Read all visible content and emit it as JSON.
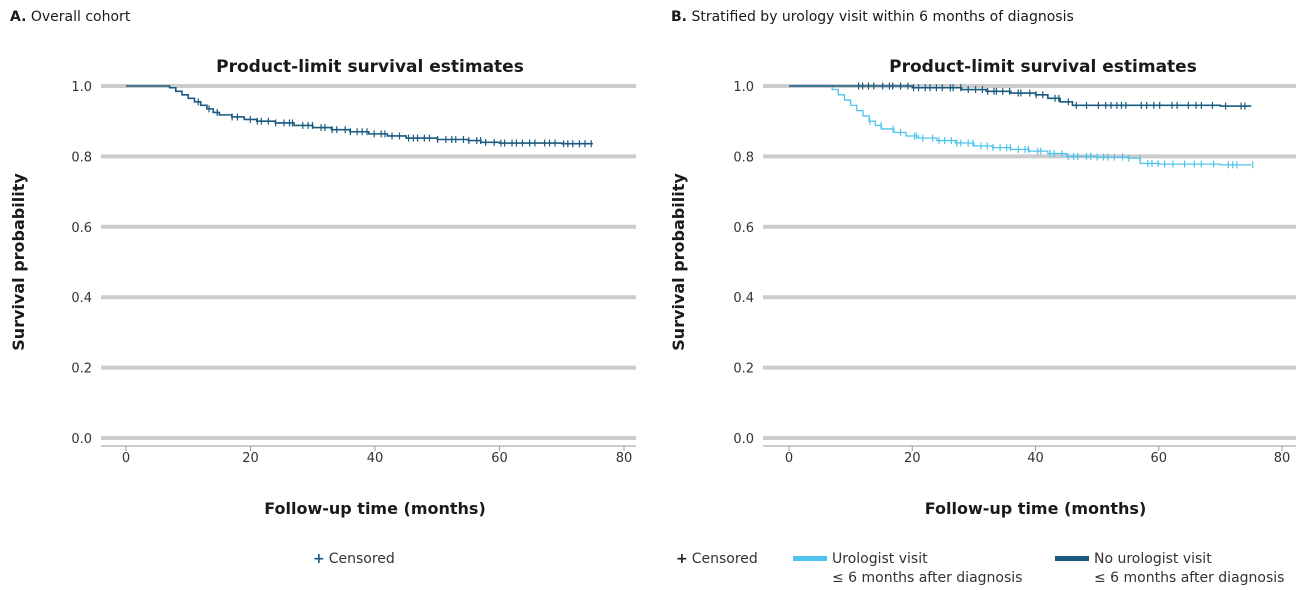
{
  "panels": {
    "a": {
      "letter": "A.",
      "heading": "Overall cohort"
    },
    "b": {
      "letter": "B.",
      "heading": "Stratified by urology visit within 6 months of diagnosis"
    }
  },
  "legend": {
    "censored_symbol": "+",
    "censored": "Censored",
    "urologist_line1": "Urologist visit",
    "urologist_line2": "≤ 6 months after diagnosis",
    "no_urologist_line1": "No urologist visit",
    "no_urologist_line2": "≤ 6 months after diagnosis"
  },
  "colors": {
    "dark": "#1a5a80",
    "light": "#4ec4ec",
    "grid": "#cccccc"
  },
  "chart_data": [
    {
      "type": "line",
      "title": "Product-limit survival estimates",
      "xlabel": "Follow-up time (months)",
      "ylabel": "Survival probability",
      "xlim": [
        0,
        80
      ],
      "ylim": [
        0,
        1
      ],
      "xticks": [
        0,
        20,
        40,
        60,
        80
      ],
      "yticks": [
        "0.0",
        "0.2",
        "0.4",
        "0.6",
        "0.8",
        "1.0"
      ],
      "grid": "horizontal",
      "series": [
        {
          "color": "#1a5a80",
          "x": [
            0,
            6,
            7,
            8,
            9,
            10,
            11,
            12,
            13,
            14,
            15,
            17,
            19,
            21,
            24,
            27,
            30,
            33,
            36,
            39,
            42,
            45,
            50,
            55,
            57,
            60,
            65,
            70,
            75
          ],
          "y": [
            1.0,
            1.0,
            0.995,
            0.985,
            0.975,
            0.965,
            0.955,
            0.945,
            0.935,
            0.925,
            0.918,
            0.912,
            0.905,
            0.9,
            0.895,
            0.888,
            0.882,
            0.876,
            0.87,
            0.864,
            0.858,
            0.852,
            0.848,
            0.845,
            0.84,
            0.838,
            0.838,
            0.836,
            0.836
          ],
          "censored_x": [
            12,
            13,
            15,
            17,
            18,
            20,
            21,
            22,
            23,
            24,
            25,
            26,
            27,
            28,
            29,
            30,
            31,
            32,
            33,
            34,
            35,
            36,
            37,
            38,
            39,
            40,
            41,
            42,
            43,
            44,
            45,
            46,
            47,
            48,
            49,
            50,
            51,
            52,
            53,
            54,
            55,
            56,
            57,
            58,
            59,
            60,
            61,
            62,
            63,
            64,
            65,
            66,
            67,
            68,
            69,
            70,
            71,
            72,
            73,
            74,
            75
          ]
        }
      ]
    },
    {
      "type": "line",
      "title": "Product-limit survival estimates",
      "xlabel": "Follow-up time (months)",
      "ylabel": "Survival probability",
      "xlim": [
        0,
        80
      ],
      "ylim": [
        0,
        1
      ],
      "xticks": [
        0,
        20,
        40,
        60,
        80
      ],
      "yticks": [
        "0.0",
        "0.2",
        "0.4",
        "0.6",
        "0.8",
        "1.0"
      ],
      "grid": "horizontal",
      "legend_position": "bottom",
      "series": [
        {
          "name": "Urologist visit ≤ 6 months after diagnosis",
          "color": "#4ec4ec",
          "x": [
            0,
            6,
            7,
            8,
            9,
            10,
            11,
            12,
            13,
            14,
            15,
            17,
            19,
            21,
            24,
            27,
            30,
            33,
            36,
            39,
            42,
            45,
            50,
            55,
            57,
            60,
            65,
            70,
            75
          ],
          "y": [
            1.0,
            1.0,
            0.99,
            0.975,
            0.96,
            0.945,
            0.93,
            0.915,
            0.9,
            0.888,
            0.878,
            0.868,
            0.858,
            0.852,
            0.845,
            0.838,
            0.83,
            0.825,
            0.82,
            0.815,
            0.808,
            0.8,
            0.798,
            0.795,
            0.78,
            0.778,
            0.778,
            0.776,
            0.776
          ],
          "censored_x": [
            13,
            15,
            17,
            18,
            20,
            21,
            22,
            23,
            24,
            25,
            26,
            27,
            28,
            29,
            30,
            31,
            32,
            33,
            34,
            35,
            36,
            37,
            38,
            39,
            40,
            41,
            42,
            43,
            44,
            45,
            46,
            47,
            48,
            49,
            50,
            51,
            52,
            53,
            54,
            55,
            57,
            58,
            59,
            60,
            61,
            62,
            64,
            66,
            67,
            69,
            71,
            72,
            73,
            75
          ]
        },
        {
          "name": "No urologist visit ≤ 6 months after diagnosis",
          "color": "#1a5a80",
          "x": [
            0,
            10,
            20,
            28,
            32,
            36,
            40,
            42,
            44,
            46,
            60,
            70,
            75
          ],
          "y": [
            1.0,
            1.0,
            0.995,
            0.99,
            0.985,
            0.98,
            0.975,
            0.965,
            0.955,
            0.945,
            0.945,
            0.943,
            0.943
          ],
          "censored_x": [
            11,
            12,
            13,
            14,
            15,
            16,
            17,
            18,
            19,
            20,
            21,
            22,
            23,
            24,
            25,
            26,
            27,
            28,
            29,
            30,
            31,
            32,
            33,
            34,
            35,
            36,
            37,
            38,
            39,
            40,
            41,
            43,
            44,
            45,
            47,
            48,
            50,
            51,
            52,
            53,
            54,
            55,
            57,
            58,
            59,
            60,
            62,
            63,
            65,
            66,
            67,
            69,
            71,
            73,
            74
          ]
        }
      ]
    }
  ]
}
